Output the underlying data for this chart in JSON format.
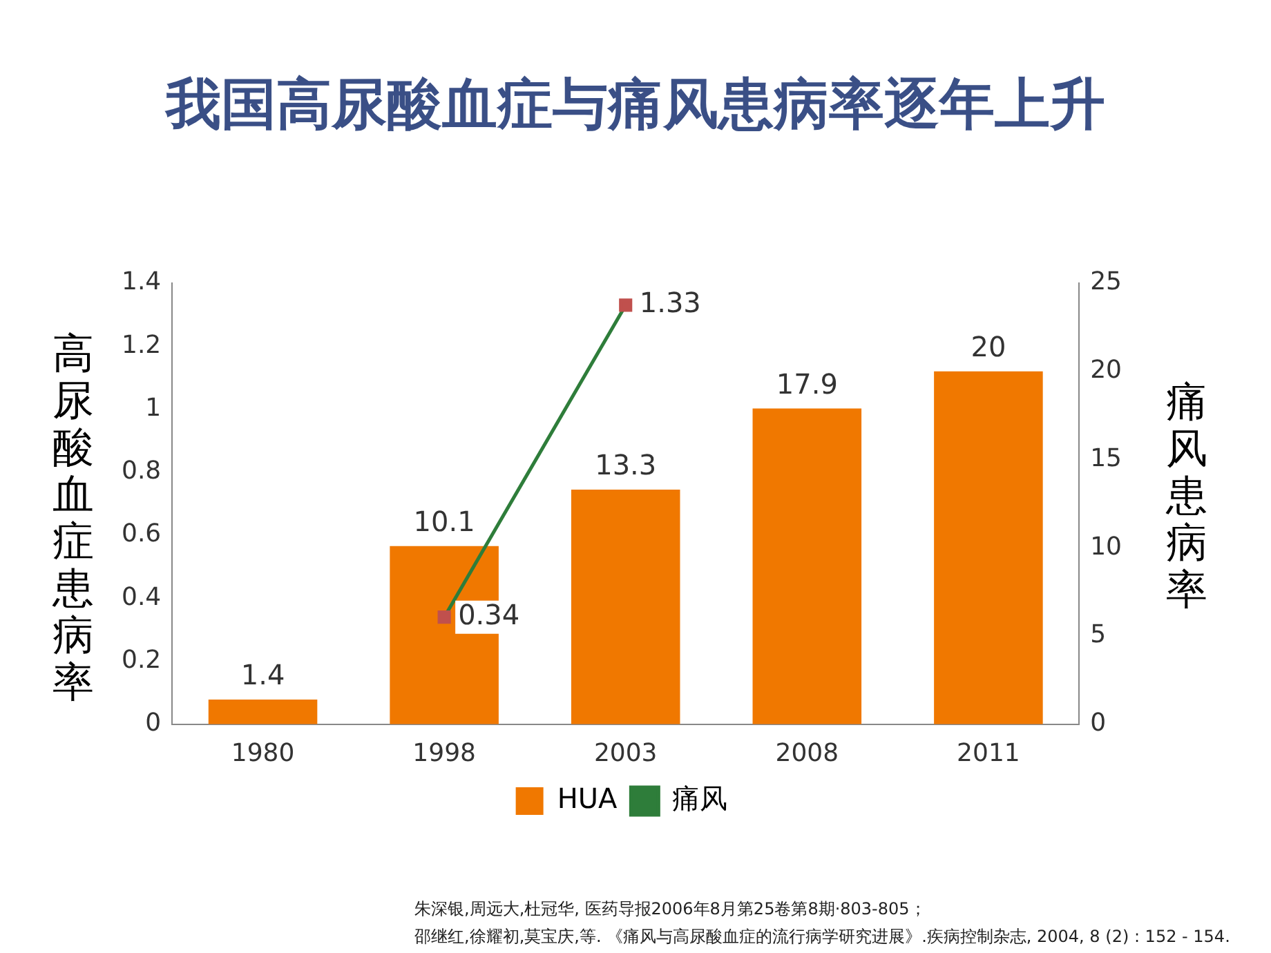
{
  "chart_data": {
    "type": "bar",
    "title": "我国高尿酸血症与痛风患病率逐年上升",
    "ylabel": "高尿酸血症患病率",
    "y2label": "痛风患病率",
    "categories": [
      "1980",
      "1998",
      "2003",
      "2008",
      "2011"
    ],
    "series": [
      {
        "name": "HUA",
        "axis": "y2",
        "color": "#f07800",
        "values": [
          1.4,
          10.1,
          13.3,
          17.9,
          20
        ]
      },
      {
        "name": "痛风",
        "type": "line",
        "axis": "y",
        "color": "#2e7d3a",
        "colors": [
          null,
          "#c0504d",
          "#c0504d",
          null,
          null
        ],
        "values": [
          null,
          0.34,
          1.33,
          null,
          null
        ]
      }
    ],
    "ylim": [
      0,
      1.4
    ],
    "yticks": [
      0,
      0.2,
      0.4,
      0.6,
      0.8,
      1,
      1.2,
      1.4
    ],
    "y2lim": [
      0,
      25
    ],
    "y2ticks": [
      0,
      5,
      10,
      15,
      20,
      25
    ],
    "data_labels": true,
    "legend": "bottom",
    "grid": false,
    "marker": "square",
    "annotations": [
      "朱深银,周远大,杜冠华, 医药导报2006年8月第25卷第8期·803-805；",
      "邵继红,徐耀初,莫宝庆,等. 《痛风与高尿酸血症的流行病学研究进展》.疾病控制杂志, 2004, 8 (2) : 152 - 154."
    ]
  }
}
